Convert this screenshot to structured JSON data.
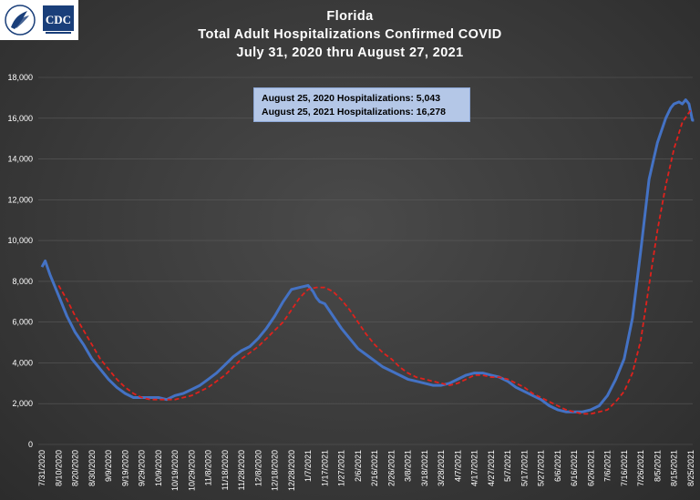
{
  "logos": {
    "left": "HHS",
    "right": "CDC"
  },
  "title_lines": [
    "Florida",
    "Total Adult Hospitalizations Confirmed COVID",
    "July 31, 2020 thru August 27, 2021"
  ],
  "callout": {
    "lines": [
      {
        "label": "August 25, 2020 Hospitalizations:",
        "value": "5,043"
      },
      {
        "label": "August 25, 2021 Hospitalizations:",
        "value": "16,278"
      }
    ]
  },
  "colors": {
    "actual": "#4472c4",
    "trend": "#e0211c",
    "callout_bg": "#b4c7e7"
  },
  "chart_data": {
    "type": "line",
    "title": "Florida Total Adult Hospitalizations Confirmed COVID July 31, 2020 thru August 27, 2021",
    "xlabel": "",
    "ylabel": "",
    "ylim": [
      0,
      18000
    ],
    "yticks": [
      "0",
      "2,000",
      "4,000",
      "6,000",
      "8,000",
      "10,000",
      "12,000",
      "14,000",
      "16,000",
      "18,000"
    ],
    "xticks": [
      "7/31/2020",
      "8/10/2020",
      "8/20/2020",
      "8/30/2020",
      "9/9/2020",
      "9/19/2020",
      "9/29/2020",
      "10/9/2020",
      "10/19/2020",
      "10/29/2020",
      "11/8/2020",
      "11/18/2020",
      "11/28/2020",
      "12/8/2020",
      "12/18/2020",
      "12/28/2020",
      "1/7/2021",
      "1/17/2021",
      "1/27/2021",
      "2/6/2021",
      "2/16/2021",
      "2/26/2021",
      "3/8/2021",
      "3/18/2021",
      "3/28/2021",
      "4/7/2021",
      "4/17/2021",
      "4/27/2021",
      "5/7/2021",
      "5/17/2021",
      "5/27/2021",
      "6/6/2021",
      "6/16/2021",
      "6/26/2021",
      "7/6/2021",
      "7/16/2021",
      "7/26/2021",
      "8/5/2021",
      "8/15/2021",
      "8/25/2021"
    ],
    "grid": true,
    "series": [
      {
        "style": "solid",
        "x": [
          "7/31/2020",
          "8/2/2020",
          "8/5/2020",
          "8/10/2020",
          "8/15/2020",
          "8/20/2020",
          "8/25/2020",
          "8/30/2020",
          "9/4/2020",
          "9/9/2020",
          "9/14/2020",
          "9/19/2020",
          "9/24/2020",
          "9/29/2020",
          "10/4/2020",
          "10/9/2020",
          "10/14/2020",
          "10/19/2020",
          "10/24/2020",
          "10/29/2020",
          "11/3/2020",
          "11/8/2020",
          "11/13/2020",
          "11/18/2020",
          "11/23/2020",
          "11/28/2020",
          "12/3/2020",
          "12/8/2020",
          "12/13/2020",
          "12/18/2020",
          "12/23/2020",
          "12/28/2020",
          "1/2/2021",
          "1/7/2021",
          "1/10/2021",
          "1/12/2021",
          "1/14/2021",
          "1/17/2021",
          "1/22/2021",
          "1/27/2021",
          "2/1/2021",
          "2/6/2021",
          "2/11/2021",
          "2/16/2021",
          "2/21/2021",
          "2/26/2021",
          "3/3/2021",
          "3/8/2021",
          "3/13/2021",
          "3/18/2021",
          "3/23/2021",
          "3/28/2021",
          "4/2/2021",
          "4/7/2021",
          "4/12/2021",
          "4/17/2021",
          "4/22/2021",
          "4/27/2021",
          "5/2/2021",
          "5/7/2021",
          "5/12/2021",
          "5/17/2021",
          "5/22/2021",
          "5/27/2021",
          "6/1/2021",
          "6/6/2021",
          "6/11/2021",
          "6/16/2021",
          "6/21/2021",
          "6/26/2021",
          "7/1/2021",
          "7/6/2021",
          "7/11/2021",
          "7/16/2021",
          "7/21/2021",
          "7/26/2021",
          "7/31/2021",
          "8/5/2021",
          "8/10/2021",
          "8/13/2021",
          "8/15/2021",
          "8/18/2021",
          "8/20/2021",
          "8/22/2021",
          "8/24/2021",
          "8/25/2021",
          "8/26/2021",
          "8/27/2021"
        ],
        "y": [
          8700,
          9000,
          8300,
          7300,
          6300,
          5500,
          4900,
          4200,
          3700,
          3200,
          2800,
          2500,
          2300,
          2300,
          2300,
          2300,
          2200,
          2400,
          2500,
          2700,
          2900,
          3200,
          3500,
          3900,
          4300,
          4600,
          4800,
          5200,
          5700,
          6300,
          7000,
          7600,
          7700,
          7800,
          7500,
          7200,
          7000,
          6900,
          6300,
          5700,
          5200,
          4700,
          4400,
          4100,
          3800,
          3600,
          3400,
          3200,
          3100,
          3000,
          2900,
          2900,
          3000,
          3200,
          3400,
          3500,
          3500,
          3400,
          3300,
          3100,
          2800,
          2600,
          2400,
          2200,
          1900,
          1700,
          1600,
          1600,
          1600,
          1700,
          1900,
          2400,
          3200,
          4200,
          6200,
          9500,
          13000,
          14800,
          16000,
          16500,
          16700,
          16800,
          16700,
          16900,
          16700,
          16300,
          15900,
          15900
        ]
      },
      {
        "style": "dashed",
        "x": [
          "8/10/2020",
          "8/15/2020",
          "8/20/2020",
          "8/25/2020",
          "8/30/2020",
          "9/4/2020",
          "9/9/2020",
          "9/14/2020",
          "9/19/2020",
          "9/24/2020",
          "9/29/2020",
          "10/4/2020",
          "10/9/2020",
          "10/14/2020",
          "10/19/2020",
          "10/24/2020",
          "10/29/2020",
          "11/3/2020",
          "11/8/2020",
          "11/13/2020",
          "11/18/2020",
          "11/23/2020",
          "11/28/2020",
          "12/3/2020",
          "12/8/2020",
          "12/13/2020",
          "12/18/2020",
          "12/23/2020",
          "12/28/2020",
          "1/2/2021",
          "1/7/2021",
          "1/12/2021",
          "1/17/2021",
          "1/22/2021",
          "1/27/2021",
          "2/1/2021",
          "2/6/2021",
          "2/11/2021",
          "2/16/2021",
          "2/21/2021",
          "2/26/2021",
          "3/3/2021",
          "3/8/2021",
          "3/13/2021",
          "3/18/2021",
          "3/23/2021",
          "3/28/2021",
          "4/2/2021",
          "4/7/2021",
          "4/12/2021",
          "4/17/2021",
          "4/22/2021",
          "4/27/2021",
          "5/2/2021",
          "5/7/2021",
          "5/12/2021",
          "5/17/2021",
          "5/22/2021",
          "5/27/2021",
          "6/1/2021",
          "6/6/2021",
          "6/11/2021",
          "6/16/2021",
          "6/21/2021",
          "6/26/2021",
          "7/1/2021",
          "7/6/2021",
          "7/11/2021",
          "7/16/2021",
          "7/21/2021",
          "7/26/2021",
          "7/31/2021",
          "8/5/2021",
          "8/10/2021",
          "8/15/2021",
          "8/20/2021",
          "8/25/2021"
        ],
        "y": [
          7800,
          7100,
          6300,
          5600,
          4900,
          4200,
          3700,
          3200,
          2800,
          2500,
          2300,
          2200,
          2200,
          2200,
          2200,
          2300,
          2400,
          2600,
          2800,
          3100,
          3400,
          3800,
          4200,
          4500,
          4800,
          5200,
          5600,
          6000,
          6600,
          7200,
          7600,
          7700,
          7700,
          7500,
          7100,
          6600,
          6000,
          5400,
          4900,
          4500,
          4200,
          3800,
          3500,
          3300,
          3200,
          3100,
          3000,
          2900,
          3000,
          3200,
          3400,
          3400,
          3300,
          3300,
          3200,
          3000,
          2800,
          2500,
          2300,
          2100,
          1900,
          1700,
          1600,
          1500,
          1500,
          1600,
          1700,
          2100,
          2600,
          3500,
          5100,
          7800,
          10500,
          12700,
          14500,
          15800,
          16400
        ]
      }
    ]
  }
}
